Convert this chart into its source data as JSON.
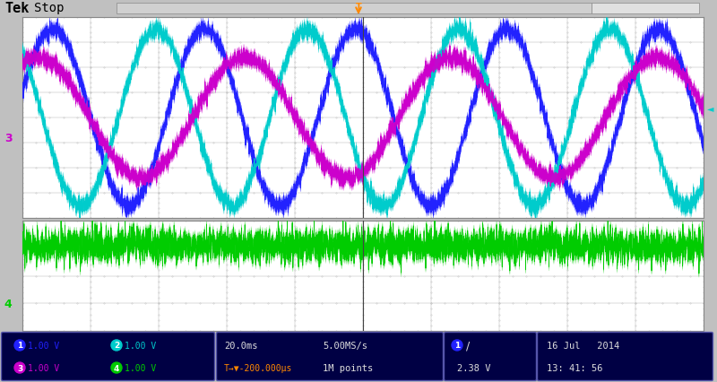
{
  "bg_color": "#c0c0c0",
  "screen_bg": "#ffffff",
  "grid_color": "#aaaaaa",
  "grid_dot_color": "#999999",
  "top_bar_bg": "#c0c0c0",
  "bottom_bar_bg": "#000033",
  "side_bar_bg": "#c0c0c0",
  "channel_colors": {
    "ch1": "#2222ff",
    "ch2": "#00cccc",
    "ch3": "#cc00cc",
    "ch4": "#00cc00"
  },
  "ch1_label": "1.00 V",
  "ch2_label": "1.00 V",
  "ch3_label": "1.00 V",
  "ch4_label": "1.00 V",
  "time_div": "20.0ms",
  "sample_rate": "5.00MS/s",
  "trigger_time": "T→▼-200.000μs",
  "points": "1M points",
  "trigger_voltage": "2.38 V",
  "date": "16 Jul   2014",
  "time_str": "13: 41: 56",
  "ch1_amplitude": 0.88,
  "ch2_amplitude": 0.88,
  "ch3_amplitude": 0.6,
  "ch4_noise_amp": 0.15,
  "ch1_freq": 4.5,
  "ch2_freq": 4.5,
  "ch3_freq": 3.3,
  "ch1_phase": 0.3,
  "ch2_phase": 2.3,
  "ch3_phase": 1.1,
  "noise_scale": 0.04,
  "num_points": 5000,
  "upper_grid_nx": 10,
  "upper_grid_ny": 8,
  "lower_grid_nx": 10,
  "lower_grid_ny": 4
}
